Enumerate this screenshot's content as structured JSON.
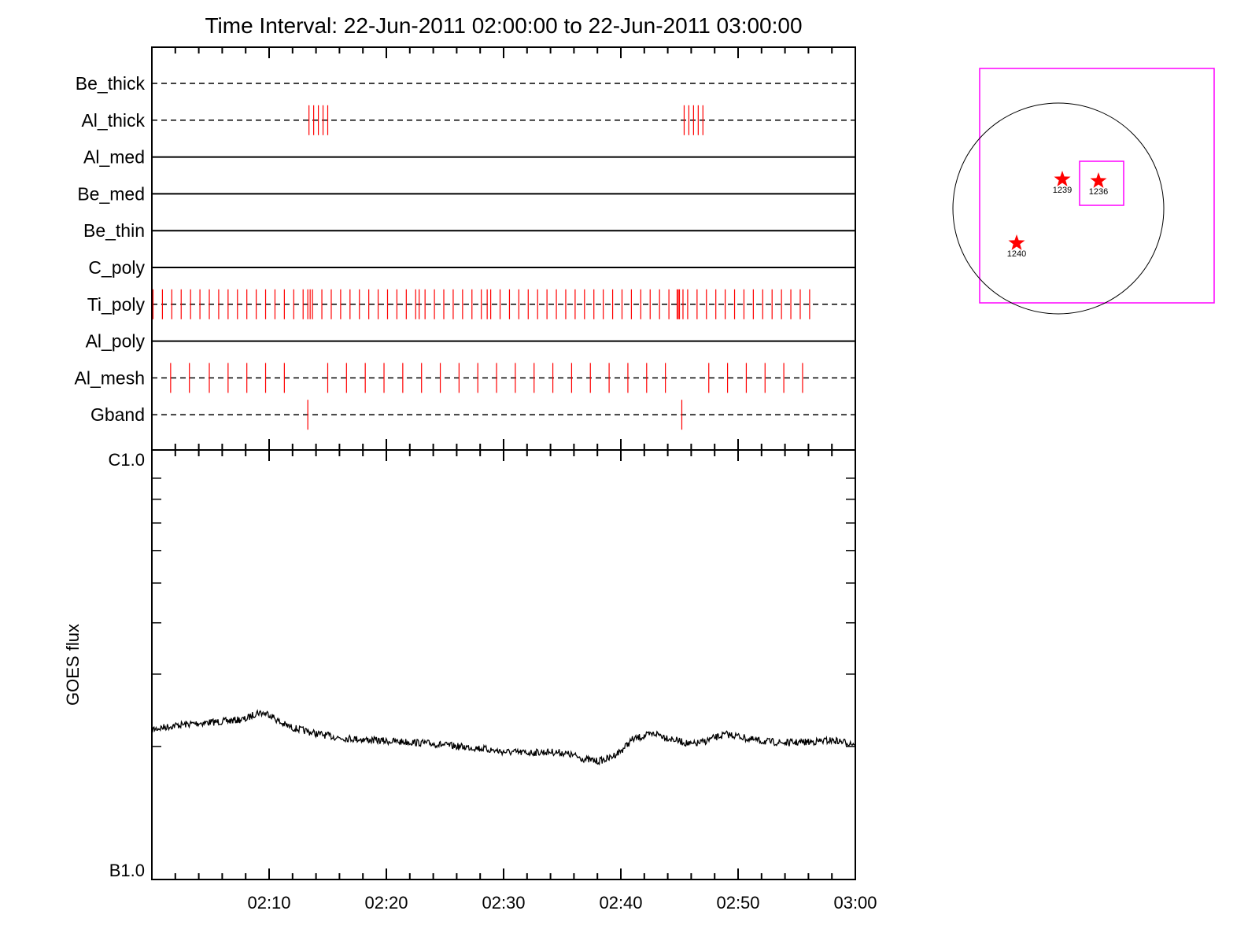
{
  "title": "Time Interval: 22-Jun-2011 02:00:00 to 22-Jun-2011 03:00:00",
  "colors": {
    "axis": "#000000",
    "marker": "#ff0000",
    "box": "#ff00ff",
    "disk": "#000000"
  },
  "chart_data": [
    {
      "type": "event-timeline",
      "x_unit": "minutes after 02:00:00",
      "xlim": [
        0,
        60
      ],
      "rows": [
        {
          "label": "Be_thick",
          "line": "dashed",
          "markers": []
        },
        {
          "label": "Al_thick",
          "line": "dashed",
          "markers": [
            13.4,
            13.8,
            14.2,
            14.6,
            15.0,
            45.4,
            45.8,
            46.2,
            46.6,
            47.0
          ]
        },
        {
          "label": "Al_med",
          "line": "solid",
          "markers": []
        },
        {
          "label": "Be_med",
          "line": "solid",
          "markers": []
        },
        {
          "label": "Be_thin",
          "line": "solid",
          "markers": []
        },
        {
          "label": "C_poly",
          "line": "solid",
          "markers": []
        },
        {
          "label": "Ti_poly",
          "line": "dashed",
          "marker_spacing_min": 0.8,
          "marker_range": [
            0.1,
            56.6
          ],
          "extra_markers": [
            13.3,
            13.5,
            22.8,
            28.6,
            44.8,
            45.0,
            45.3
          ]
        },
        {
          "label": "Al_poly",
          "line": "solid",
          "markers": []
        },
        {
          "label": "Al_mesh",
          "line": "dashed",
          "markers": [
            1.6,
            3.2,
            4.9,
            6.5,
            8.1,
            9.7,
            11.3,
            15.0,
            16.6,
            18.2,
            19.8,
            21.4,
            23.0,
            24.6,
            26.2,
            27.8,
            29.4,
            31.0,
            32.6,
            34.2,
            35.8,
            37.4,
            39.0,
            40.6,
            42.2,
            43.8,
            47.5,
            49.1,
            50.7,
            52.3,
            53.9,
            55.5
          ]
        },
        {
          "label": "Gband",
          "line": "dashed",
          "markers": [
            13.3,
            45.2
          ]
        }
      ]
    },
    {
      "type": "line",
      "ylabel": "GOES flux",
      "y_tick_labels": [
        "C1.0",
        "B1.0"
      ],
      "y_scale": "log",
      "ylim": [
        1e-07,
        1e-06
      ],
      "x_unit": "minutes after 02:00:00",
      "xlim": [
        0,
        60
      ],
      "x_tick_labels": [
        "02:10",
        "02:20",
        "02:30",
        "02:40",
        "02:50",
        "03:00"
      ],
      "x_tick_values": [
        10,
        20,
        30,
        40,
        50,
        60
      ],
      "series": [
        {
          "x": [
            0,
            2,
            4,
            6,
            8,
            9,
            10,
            11,
            12,
            14,
            16,
            18,
            20,
            22,
            24,
            26,
            28,
            30,
            32,
            34,
            35,
            36,
            37,
            38,
            39,
            40,
            41,
            42,
            43,
            44,
            45,
            46,
            47,
            48,
            49,
            50,
            51,
            52,
            54,
            56,
            58,
            60
          ],
          "y": [
            2.2e-07,
            2.25e-07,
            2.28e-07,
            2.3e-07,
            2.33e-07,
            2.42e-07,
            2.4e-07,
            2.28e-07,
            2.22e-07,
            2.15e-07,
            2.1e-07,
            2.08e-07,
            2.06e-07,
            2.05e-07,
            2.03e-07,
            2e-07,
            1.98e-07,
            1.94e-07,
            1.93e-07,
            1.94e-07,
            1.93e-07,
            1.9e-07,
            1.86e-07,
            1.84e-07,
            1.87e-07,
            1.95e-07,
            2.08e-07,
            2.12e-07,
            2.15e-07,
            2.1e-07,
            2.06e-07,
            2.02e-07,
            2.05e-07,
            2.1e-07,
            2.14e-07,
            2.12e-07,
            2.08e-07,
            2.06e-07,
            2.04e-07,
            2.05e-07,
            2.07e-07,
            2.03e-07
          ]
        }
      ]
    }
  ],
  "locator": {
    "regions": [
      {
        "label": "1239"
      },
      {
        "label": "1236"
      },
      {
        "label": "1240"
      }
    ]
  }
}
